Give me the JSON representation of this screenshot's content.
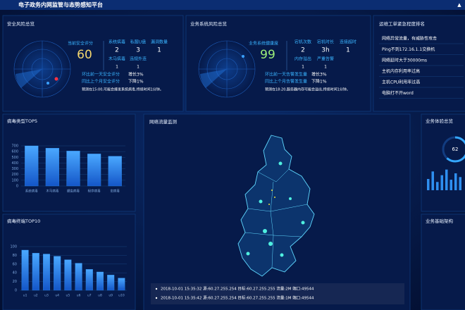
{
  "header": {
    "title": "电子政务内网监管与态势感知平台"
  },
  "security": {
    "title": "安全风险总览",
    "score_label": "当前安全评分",
    "score": 60,
    "stats": [
      {
        "label": "系统病毒",
        "value": 2
      },
      {
        "label": "私服U盘",
        "value": 3
      },
      {
        "label": "漏洞数量",
        "value": 1
      },
      {
        "label": "木马病毒",
        "value": 1
      },
      {
        "label": "违规外连",
        "value": 1
      }
    ],
    "trends": [
      {
        "label": "环比前一天安全评分",
        "change": "增长3%"
      },
      {
        "label": "同比上个月安全评分",
        "change": "下降1%"
      }
    ],
    "forecast": "预测在15:00,可能会爆发系统病毒,持续时间1分钟。"
  },
  "business": {
    "title": "业务系统风险总览",
    "score_label": "业务系统健康度",
    "score": 99,
    "stats": [
      {
        "label": "宕机次数",
        "value": 2
      },
      {
        "label": "宕机时长",
        "value": "3h"
      },
      {
        "label": "连接超时",
        "value": 1
      },
      {
        "label": "内存溢出",
        "value": 1
      },
      {
        "label": "严重告警",
        "value": 1
      }
    ],
    "trends": [
      {
        "label": "环比前一天告警发生量",
        "change": "增长3%"
      },
      {
        "label": "同比上个月告警发生量",
        "change": "下降1%"
      }
    ],
    "forecast": "预测在18:20,服务器内存可能会溢出,持续时间1分钟。"
  },
  "tickets": {
    "title": "运维工单紧急程度排名",
    "items": [
      "网络异常流量，有威胁性攻击",
      "Ping不到172.16.1.1交换机",
      "网络延时大于30000ms",
      "主机内存利用率过高",
      "主机CPU利用率过高",
      "电脑打不开word"
    ]
  },
  "virus_top5": {
    "type": "bar",
    "title": "病毒类型TOP5",
    "categories": [
      "系统病毒",
      "木马病毒",
      "蠕虫病毒",
      "程序病毒",
      "宏病毒"
    ],
    "values": [
      700,
      660,
      610,
      560,
      520
    ],
    "ylim": [
      0,
      700
    ],
    "yticks": [
      0,
      100,
      200,
      300,
      400,
      500,
      600,
      700
    ],
    "color": "#2e8ff0"
  },
  "terminal_top10": {
    "type": "bar",
    "title": "病毒终端TOP10",
    "categories": [
      "u1",
      "u2",
      "u3",
      "u4",
      "u5",
      "u6",
      "u7",
      "u8",
      "u9",
      "u10"
    ],
    "values": [
      92,
      85,
      83,
      78,
      70,
      62,
      48,
      42,
      35,
      28
    ],
    "ylim": [
      0,
      100
    ],
    "yticks": [
      0,
      20,
      40,
      60,
      80,
      100
    ],
    "color": "#2e8ff0"
  },
  "traffic": {
    "title": "网络流量监测",
    "logs": [
      "2018-10-01 15:35:32 源:60.27.255.254 目标:60.27.255.255 流量:2M 端口:49544",
      "2018-10-01 15:35:42 源:60.27.255.254 目标:60.27.255.255 流量:1M 端口:49544"
    ]
  },
  "experience": {
    "title": "业务体验总览",
    "score": 62,
    "bars": [
      30,
      50,
      22,
      40,
      55,
      28,
      45,
      35
    ],
    "ylim": [
      0,
      60
    ]
  },
  "infrastructure": {
    "title": "业务基础架构"
  }
}
